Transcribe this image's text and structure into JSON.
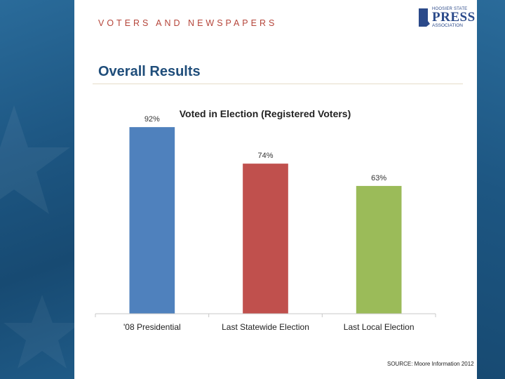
{
  "slide": {
    "section_label": "VOTERS AND NEWSPAPERS",
    "title": "Overall Results",
    "source": "SOURCE: Moore Information 2012",
    "logo": {
      "top": "HOOSIER STATE",
      "main": "PRESS",
      "bottom": "ASSOCIATION",
      "icon": "indiana-state-icon"
    }
  },
  "colors": {
    "background": "#1f5a86",
    "section_label": "#b5453a",
    "title": "#1f4d7a",
    "bars": [
      "#4f81bd",
      "#c0504d",
      "#9bbb59"
    ]
  },
  "chart_data": {
    "type": "bar",
    "title": "Voted in Election (Registered Voters)",
    "categories": [
      "'08 Presidential",
      "Last Statewide Election",
      "Last Local Election"
    ],
    "values": [
      92,
      74,
      63
    ],
    "value_labels": [
      "92%",
      "74%",
      "63%"
    ],
    "ylim": [
      0,
      100
    ],
    "grid": false,
    "legend": "none",
    "xlabel": "",
    "ylabel": ""
  }
}
